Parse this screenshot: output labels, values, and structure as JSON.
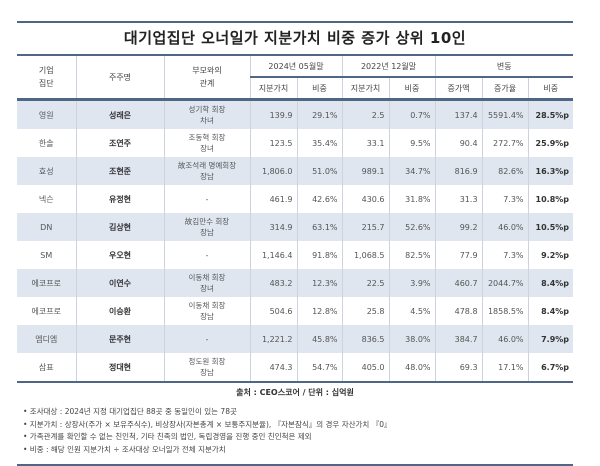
{
  "title": "대기업집단 오너일가 지분가치 비중 증가 상위 10인",
  "header": {
    "group": "기업\n집단",
    "shareholder": "주주명",
    "relation": "부모와의\n관계",
    "period_2024": "2024년 05월말",
    "period_2022": "2022년 12월말",
    "change": "변동",
    "sub": [
      "지분가치",
      "비중",
      "지분가치",
      "비중",
      "증가액",
      "증가율",
      "비중"
    ]
  },
  "rows": [
    {
      "group": "영원",
      "name": "성래은",
      "relation": "성기학 회장\n차녀",
      "v2024": "139.9",
      "s2024": "29.1%",
      "v2022": "2.5",
      "s2022": "0.7%",
      "inc": "137.4",
      "rate": "5591.4%",
      "share": "28.5%p"
    },
    {
      "group": "한솔",
      "name": "조연주",
      "relation": "조동혁 회장\n장녀",
      "v2024": "123.5",
      "s2024": "35.4%",
      "v2022": "33.1",
      "s2022": "9.5%",
      "inc": "90.4",
      "rate": "272.7%",
      "share": "25.9%p"
    },
    {
      "group": "효성",
      "name": "조현준",
      "relation": "故조석래 명예회장\n장남",
      "v2024": "1,806.0",
      "s2024": "51.0%",
      "v2022": "989.1",
      "s2022": "34.7%",
      "inc": "816.9",
      "rate": "82.6%",
      "share": "16.3%p"
    },
    {
      "group": "넥슨",
      "name": "유정현",
      "relation": "-",
      "v2024": "461.9",
      "s2024": "42.6%",
      "v2022": "430.6",
      "s2022": "31.8%",
      "inc": "31.3",
      "rate": "7.3%",
      "share": "10.8%p"
    },
    {
      "group": "DN",
      "name": "김상현",
      "relation": "故김만수 회장\n장남",
      "v2024": "314.9",
      "s2024": "63.1%",
      "v2022": "215.7",
      "s2022": "52.6%",
      "inc": "99.2",
      "rate": "46.0%",
      "share": "10.5%p"
    },
    {
      "group": "SM",
      "name": "우오현",
      "relation": "-",
      "v2024": "1,146.4",
      "s2024": "91.8%",
      "v2022": "1,068.5",
      "s2022": "82.5%",
      "inc": "77.9",
      "rate": "7.3%",
      "share": "9.2%p"
    },
    {
      "group": "에코프로",
      "name": "이연수",
      "relation": "이동채 회장\n장녀",
      "v2024": "483.2",
      "s2024": "12.3%",
      "v2022": "22.5",
      "s2022": "3.9%",
      "inc": "460.7",
      "rate": "2044.7%",
      "share": "8.4%p"
    },
    {
      "group": "에코프로",
      "name": "이승환",
      "relation": "이동채 회장\n장남",
      "v2024": "504.6",
      "s2024": "12.8%",
      "v2022": "25.8",
      "s2022": "4.5%",
      "inc": "478.8",
      "rate": "1858.5%",
      "share": "8.4%p"
    },
    {
      "group": "엠디엠",
      "name": "문주현",
      "relation": "-",
      "v2024": "1,221.2",
      "s2024": "45.8%",
      "v2022": "836.5",
      "s2022": "38.0%",
      "inc": "384.7",
      "rate": "46.0%",
      "share": "7.9%p"
    },
    {
      "group": "삼표",
      "name": "정대현",
      "relation": "정도원 회장\n장남",
      "v2024": "474.3",
      "s2024": "54.7%",
      "v2022": "405.0",
      "s2022": "48.0%",
      "inc": "69.3",
      "rate": "17.1%",
      "share": "6.7%p"
    }
  ],
  "source": "출처 : CEO스코어 / 단위 : 십억원",
  "notes": [
    "• 조사대상 : 2024년 지정 대기업집단 88곳 중 동일인이 있는 78곳",
    "• 지분가치 : 상장사(주가 × 보유주식수), 비상장사(자본총계 × 보통주지분율), 『자본잠식』의 경우 자산가치 『0』",
    "• 가족관계를 확인할 수 없는 친인척, 기타 친족의 법인, 독립경영을 진행 중인 친인척은 제외",
    "• 비중 : 해당 인원 지분가치 ÷ 조사대상 오너일가 전체 지분가치"
  ],
  "colors": {
    "rule": "#4f6684",
    "row_shade": "#dfe6f0"
  }
}
